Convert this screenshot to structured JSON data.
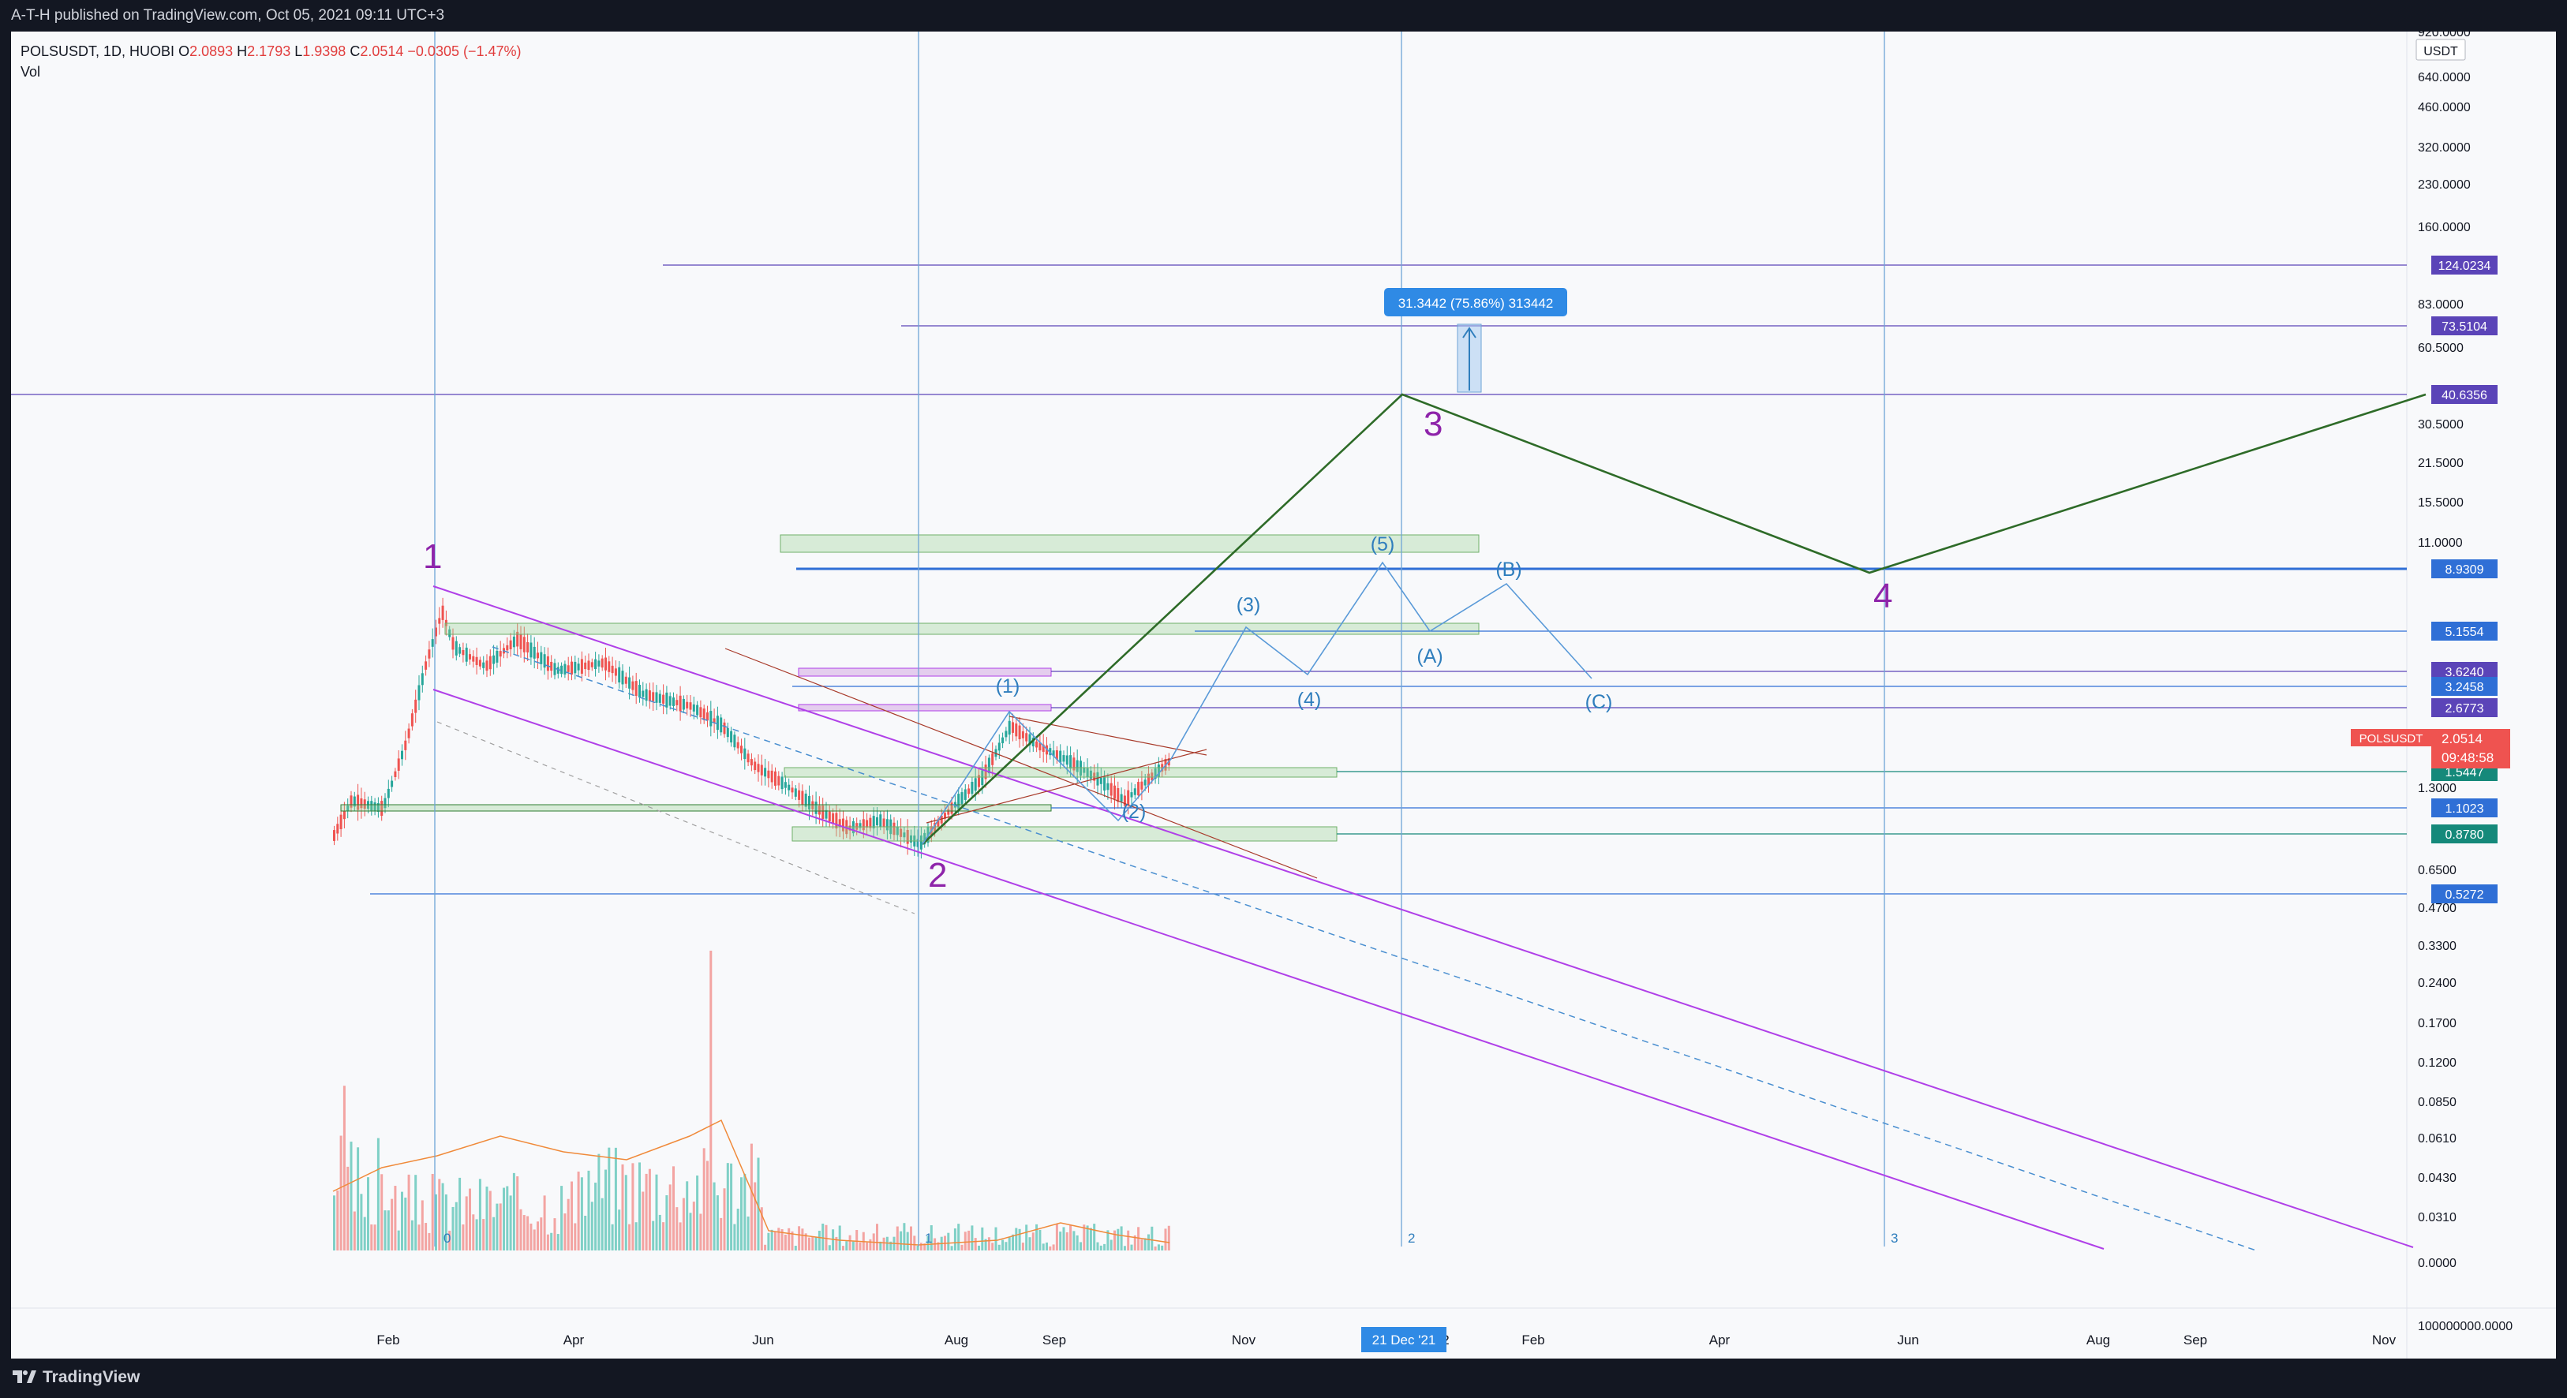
{
  "header": {
    "published": "A-T-H published on TradingView.com, Oct 05, 2021 09:11 UTC+3"
  },
  "legend": {
    "symbol": "POLSUSDT, 1D, HUOBI",
    "o_lbl": "O",
    "o": "2.0893",
    "h_lbl": "H",
    "h": "2.1793",
    "l_lbl": "L",
    "l": "1.9398",
    "c_lbl": "C",
    "c": "2.0514",
    "change": "−0.0305 (−1.47%)",
    "vol": "Vol"
  },
  "price_axis": {
    "currency": "USDT",
    "ticks": [
      "920.0000",
      "640.0000",
      "460.0000",
      "320.0000",
      "230.0000",
      "160.0000",
      "83.0000",
      "60.5000",
      "30.5000",
      "21.5000",
      "15.5000",
      "11.0000",
      "1.3000",
      "0.6500",
      "0.4700",
      "0.3300",
      "0.2400",
      "0.1700",
      "0.1200",
      "0.0850",
      "0.0610",
      "0.0430",
      "0.0310",
      "0.0000",
      "100000000.0000"
    ],
    "badges": [
      {
        "text": "124.0234",
        "color": "#5b44b8"
      },
      {
        "text": "73.5104",
        "color": "#5b44b8"
      },
      {
        "text": "40.6356",
        "color": "#5b44b8"
      },
      {
        "text": "8.9309",
        "color": "#2f6fd6"
      },
      {
        "text": "5.1554",
        "color": "#2f6fd6"
      },
      {
        "text": "3.6240",
        "color": "#5b44b8"
      },
      {
        "text": "3.2458",
        "color": "#2f6fd6"
      },
      {
        "text": "2.6773",
        "color": "#5b44b8"
      },
      {
        "text": "1.5447",
        "color": "#15897a"
      },
      {
        "text": "1.1023",
        "color": "#2f6fd6"
      },
      {
        "text": "0.8780",
        "color": "#15897a"
      },
      {
        "text": "0.5272",
        "color": "#2f6fd6"
      }
    ],
    "last": {
      "symbol": "POLSUSDT",
      "price": "2.0514",
      "countdown": "09:48:58",
      "color": "#ef5350"
    }
  },
  "time_axis": {
    "ticks": [
      "Feb",
      "Apr",
      "Jun",
      "Aug",
      "Sep",
      "Nov",
      "2",
      "Feb",
      "Apr",
      "Jun",
      "Aug",
      "Sep",
      "Nov"
    ],
    "cursor_date": "21 Dec '21"
  },
  "annotations": {
    "measure": "31.3442 (75.86%) 313442",
    "major_waves": [
      "1",
      "2",
      "3",
      "4"
    ],
    "minor_waves": [
      "(1)",
      "(2)",
      "(3)",
      "(4)",
      "(5)",
      "(A)",
      "(B)",
      "(C)"
    ],
    "cycle_markers": [
      "0",
      "1",
      "2",
      "3"
    ]
  },
  "colors": {
    "candle_up": "#26a69a",
    "candle_down": "#ef5350",
    "wave_major": "#8e24aa",
    "wave_minor": "#2f7ebd",
    "impulse_line": "#2e6b28",
    "channel": "#b040e8",
    "vline": "#6ea4d6",
    "hline": "#5b44b8"
  },
  "footer": {
    "brand": "TradingView"
  }
}
